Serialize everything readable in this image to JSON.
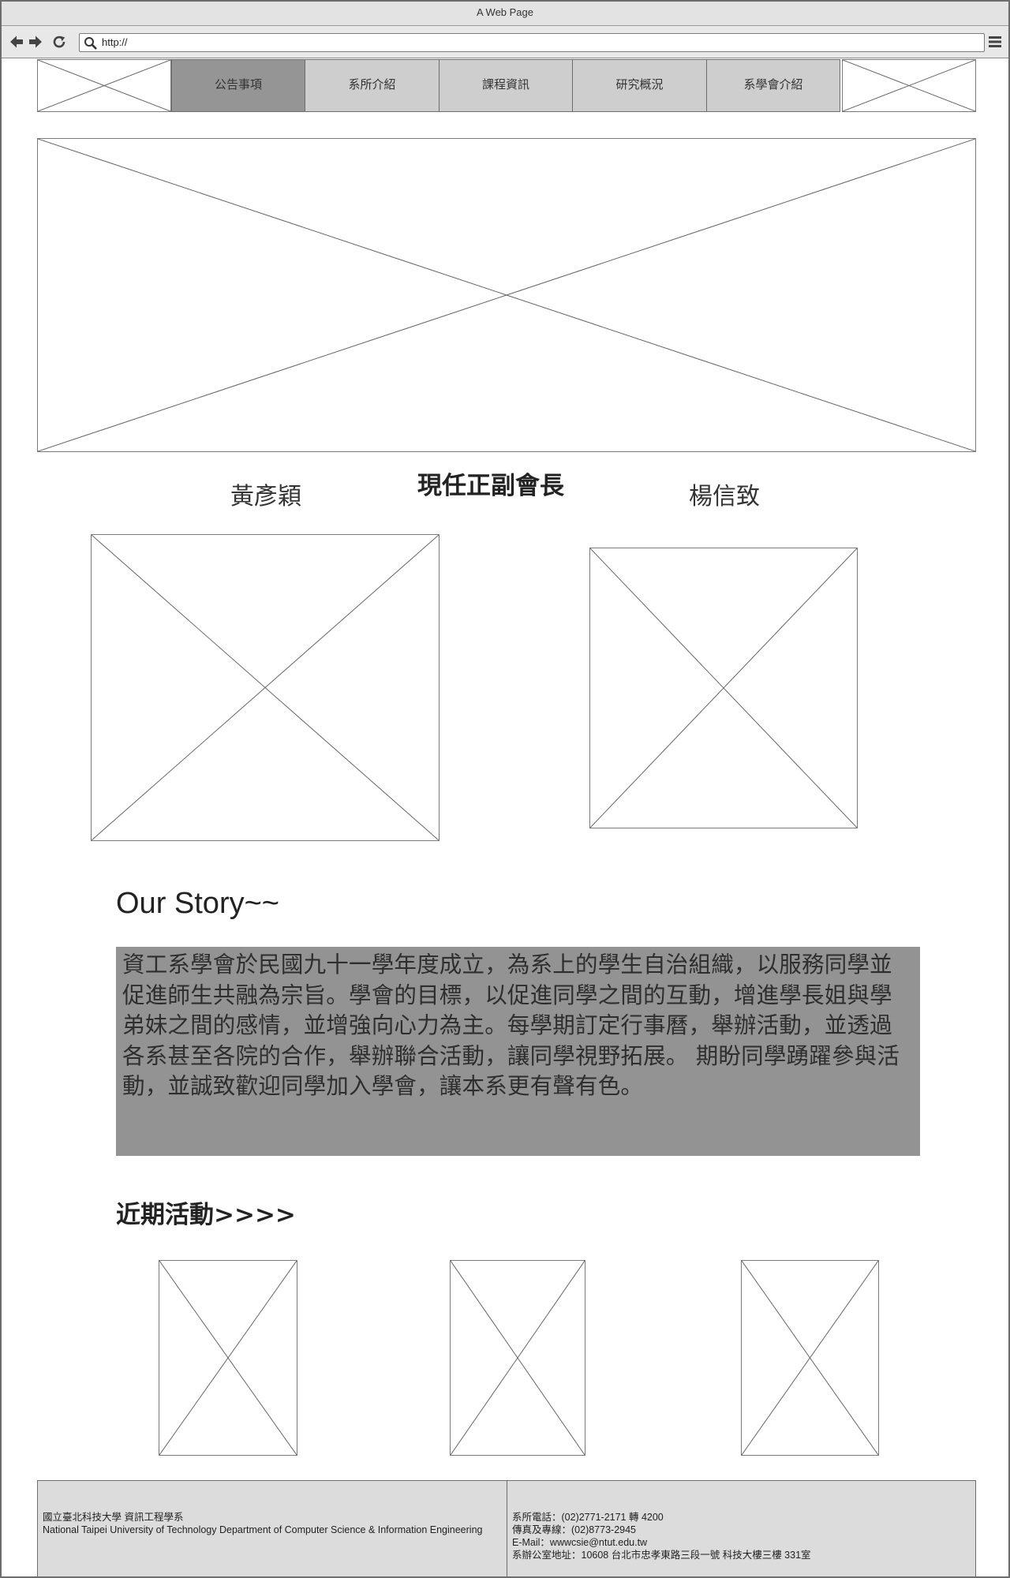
{
  "window": {
    "title": "A Web Page"
  },
  "browser": {
    "url": "http://"
  },
  "nav": {
    "tabs": [
      {
        "label": "公告事項",
        "active": true
      },
      {
        "label": "系所介紹",
        "active": false
      },
      {
        "label": "課程資訊",
        "active": false
      },
      {
        "label": "研究概況",
        "active": false
      },
      {
        "label": "系學會介紹",
        "active": false
      }
    ]
  },
  "officers": {
    "title": "現任正副會長",
    "left_name": "黃彥穎",
    "right_name": "楊信致"
  },
  "story": {
    "heading": "Our Story~~",
    "body": "資工系學會於民國九十一學年度成立，為系上的學生自治組織，以服務同學並促進師生共融為宗旨。學會的目標，以促進同學之間的互動，增進學長姐與學弟妹之間的感情，並增強向心力為主。每學期訂定行事曆，舉辦活動，並透過各系甚至各院的合作，舉辦聯合活動，讓同學視野拓展。 期盼同學踴躍參與活動，並誠致歡迎同學加入學會，讓本系更有聲有色。"
  },
  "events": {
    "heading": "近期活動>>>>"
  },
  "footer": {
    "left": {
      "line1": "國立臺北科技大學 資訊工程學系",
      "line2": "National Taipei University of Technology Department of Computer Science & Information Engineering"
    },
    "right": {
      "phone": "系所電話：(02)2771-2171 轉 4200",
      "fax": "傳真及專線：(02)8773-2945",
      "email": "E-Mail：wwwcsie@ntut.edu.tw",
      "address": "系辦公室地址：10608 台北市忠孝東路三段一號 科技大樓三樓 331室"
    }
  },
  "icons": {
    "back": "arrow-left-icon",
    "forward": "arrow-right-icon",
    "reload": "reload-icon",
    "search": "search-icon",
    "menu": "hamburger-menu-icon"
  },
  "colors": {
    "tab_bg": "#cecece",
    "tab_active_bg": "#959595",
    "story_bg": "#939393",
    "footer_bg": "#dcdcdc"
  }
}
